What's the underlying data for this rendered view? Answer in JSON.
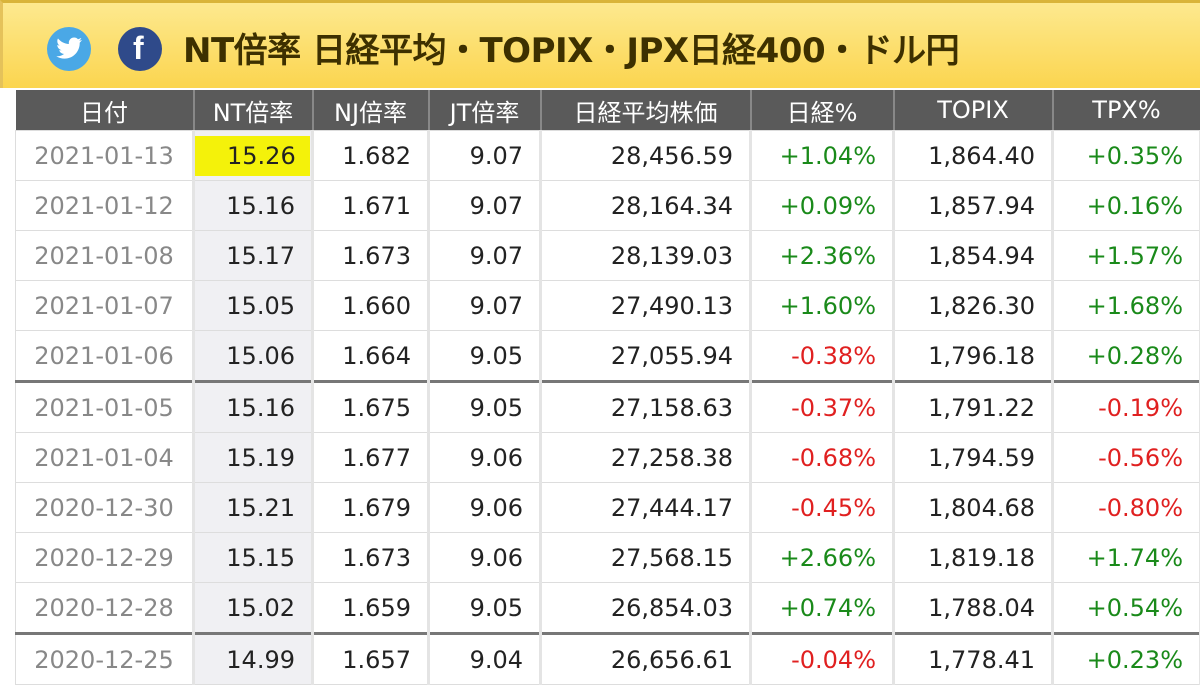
{
  "header": {
    "title": "NT倍率 日経平均・TOPIX・JPX日経400・ドル円"
  },
  "table": {
    "headers": [
      "日付",
      "NT倍率",
      "NJ倍率",
      "JT倍率",
      "日経平均株価",
      "日経%",
      "TOPIX",
      "TPX%"
    ],
    "rows": [
      [
        "2021-01-13",
        "15.26",
        "1.682",
        "9.07",
        "28,456.59",
        "+1.04%",
        "1,864.40",
        "+0.35%"
      ],
      [
        "2021-01-12",
        "15.16",
        "1.671",
        "9.07",
        "28,164.34",
        "+0.09%",
        "1,857.94",
        "+0.16%"
      ],
      [
        "2021-01-08",
        "15.17",
        "1.673",
        "9.07",
        "28,139.03",
        "+2.36%",
        "1,854.94",
        "+1.57%"
      ],
      [
        "2021-01-07",
        "15.05",
        "1.660",
        "9.07",
        "27,490.13",
        "+1.60%",
        "1,826.30",
        "+1.68%"
      ],
      [
        "2021-01-06",
        "15.06",
        "1.664",
        "9.05",
        "27,055.94",
        "-0.38%",
        "1,796.18",
        "+0.28%"
      ],
      [
        "2021-01-05",
        "15.16",
        "1.675",
        "9.05",
        "27,158.63",
        "-0.37%",
        "1,791.22",
        "-0.19%"
      ],
      [
        "2021-01-04",
        "15.19",
        "1.677",
        "9.06",
        "27,258.38",
        "-0.68%",
        "1,794.59",
        "-0.56%"
      ],
      [
        "2020-12-30",
        "15.21",
        "1.679",
        "9.06",
        "27,444.17",
        "-0.45%",
        "1,804.68",
        "-0.80%"
      ],
      [
        "2020-12-29",
        "15.15",
        "1.673",
        "9.06",
        "27,568.15",
        "+2.66%",
        "1,819.18",
        "+1.74%"
      ],
      [
        "2020-12-28",
        "15.02",
        "1.659",
        "9.05",
        "26,854.03",
        "+0.74%",
        "1,788.04",
        "+0.54%"
      ],
      [
        "2020-12-25",
        "14.99",
        "1.657",
        "9.04",
        "26,656.61",
        "-0.04%",
        "1,778.41",
        "+0.23%"
      ]
    ]
  }
}
